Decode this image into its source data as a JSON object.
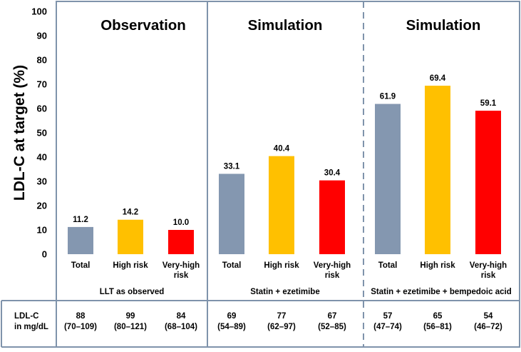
{
  "chart_data": {
    "type": "bar",
    "ylabel": "LDL-C at target (%)",
    "ylim": [
      0,
      100
    ],
    "yticks": [
      0,
      10,
      20,
      30,
      40,
      50,
      60,
      70,
      80,
      90,
      100
    ],
    "categories": [
      "Total",
      "High risk",
      "Very-high risk"
    ],
    "colors": {
      "Total": "#8497b0",
      "High risk": "#ffc000",
      "Very-high risk": "#ff0000"
    },
    "panels": [
      {
        "title": "Observation",
        "subtitle": "LLT as observed",
        "values": [
          11.2,
          14.2,
          10.0
        ],
        "value_labels": [
          "11.2",
          "14.2",
          "10.0"
        ],
        "ldl": [
          {
            "median": "88",
            "range": "(70–109)"
          },
          {
            "median": "99",
            "range": "(80–121)"
          },
          {
            "median": "84",
            "range": "(68–104)"
          }
        ]
      },
      {
        "title": "Simulation",
        "subtitle": "Statin + ezetimibe",
        "values": [
          33.1,
          40.4,
          30.4
        ],
        "value_labels": [
          "33.1",
          "40.4",
          "30.4"
        ],
        "ldl": [
          {
            "median": "69",
            "range": "(54–89)"
          },
          {
            "median": "77",
            "range": "(62–97)"
          },
          {
            "median": "67",
            "range": "(52–85)"
          }
        ]
      },
      {
        "title": "Simulation",
        "subtitle": "Statin + ezetimibe + bempedoic acid",
        "values": [
          61.9,
          69.4,
          59.1
        ],
        "value_labels": [
          "61.9",
          "69.4",
          "59.1"
        ],
        "ldl": [
          {
            "median": "57",
            "range": "(47–74)"
          },
          {
            "median": "65",
            "range": "(56–81)"
          },
          {
            "median": "54",
            "range": "(46–72)"
          }
        ]
      }
    ],
    "footer_label": [
      "LDL-C",
      "in mg/dL"
    ]
  }
}
